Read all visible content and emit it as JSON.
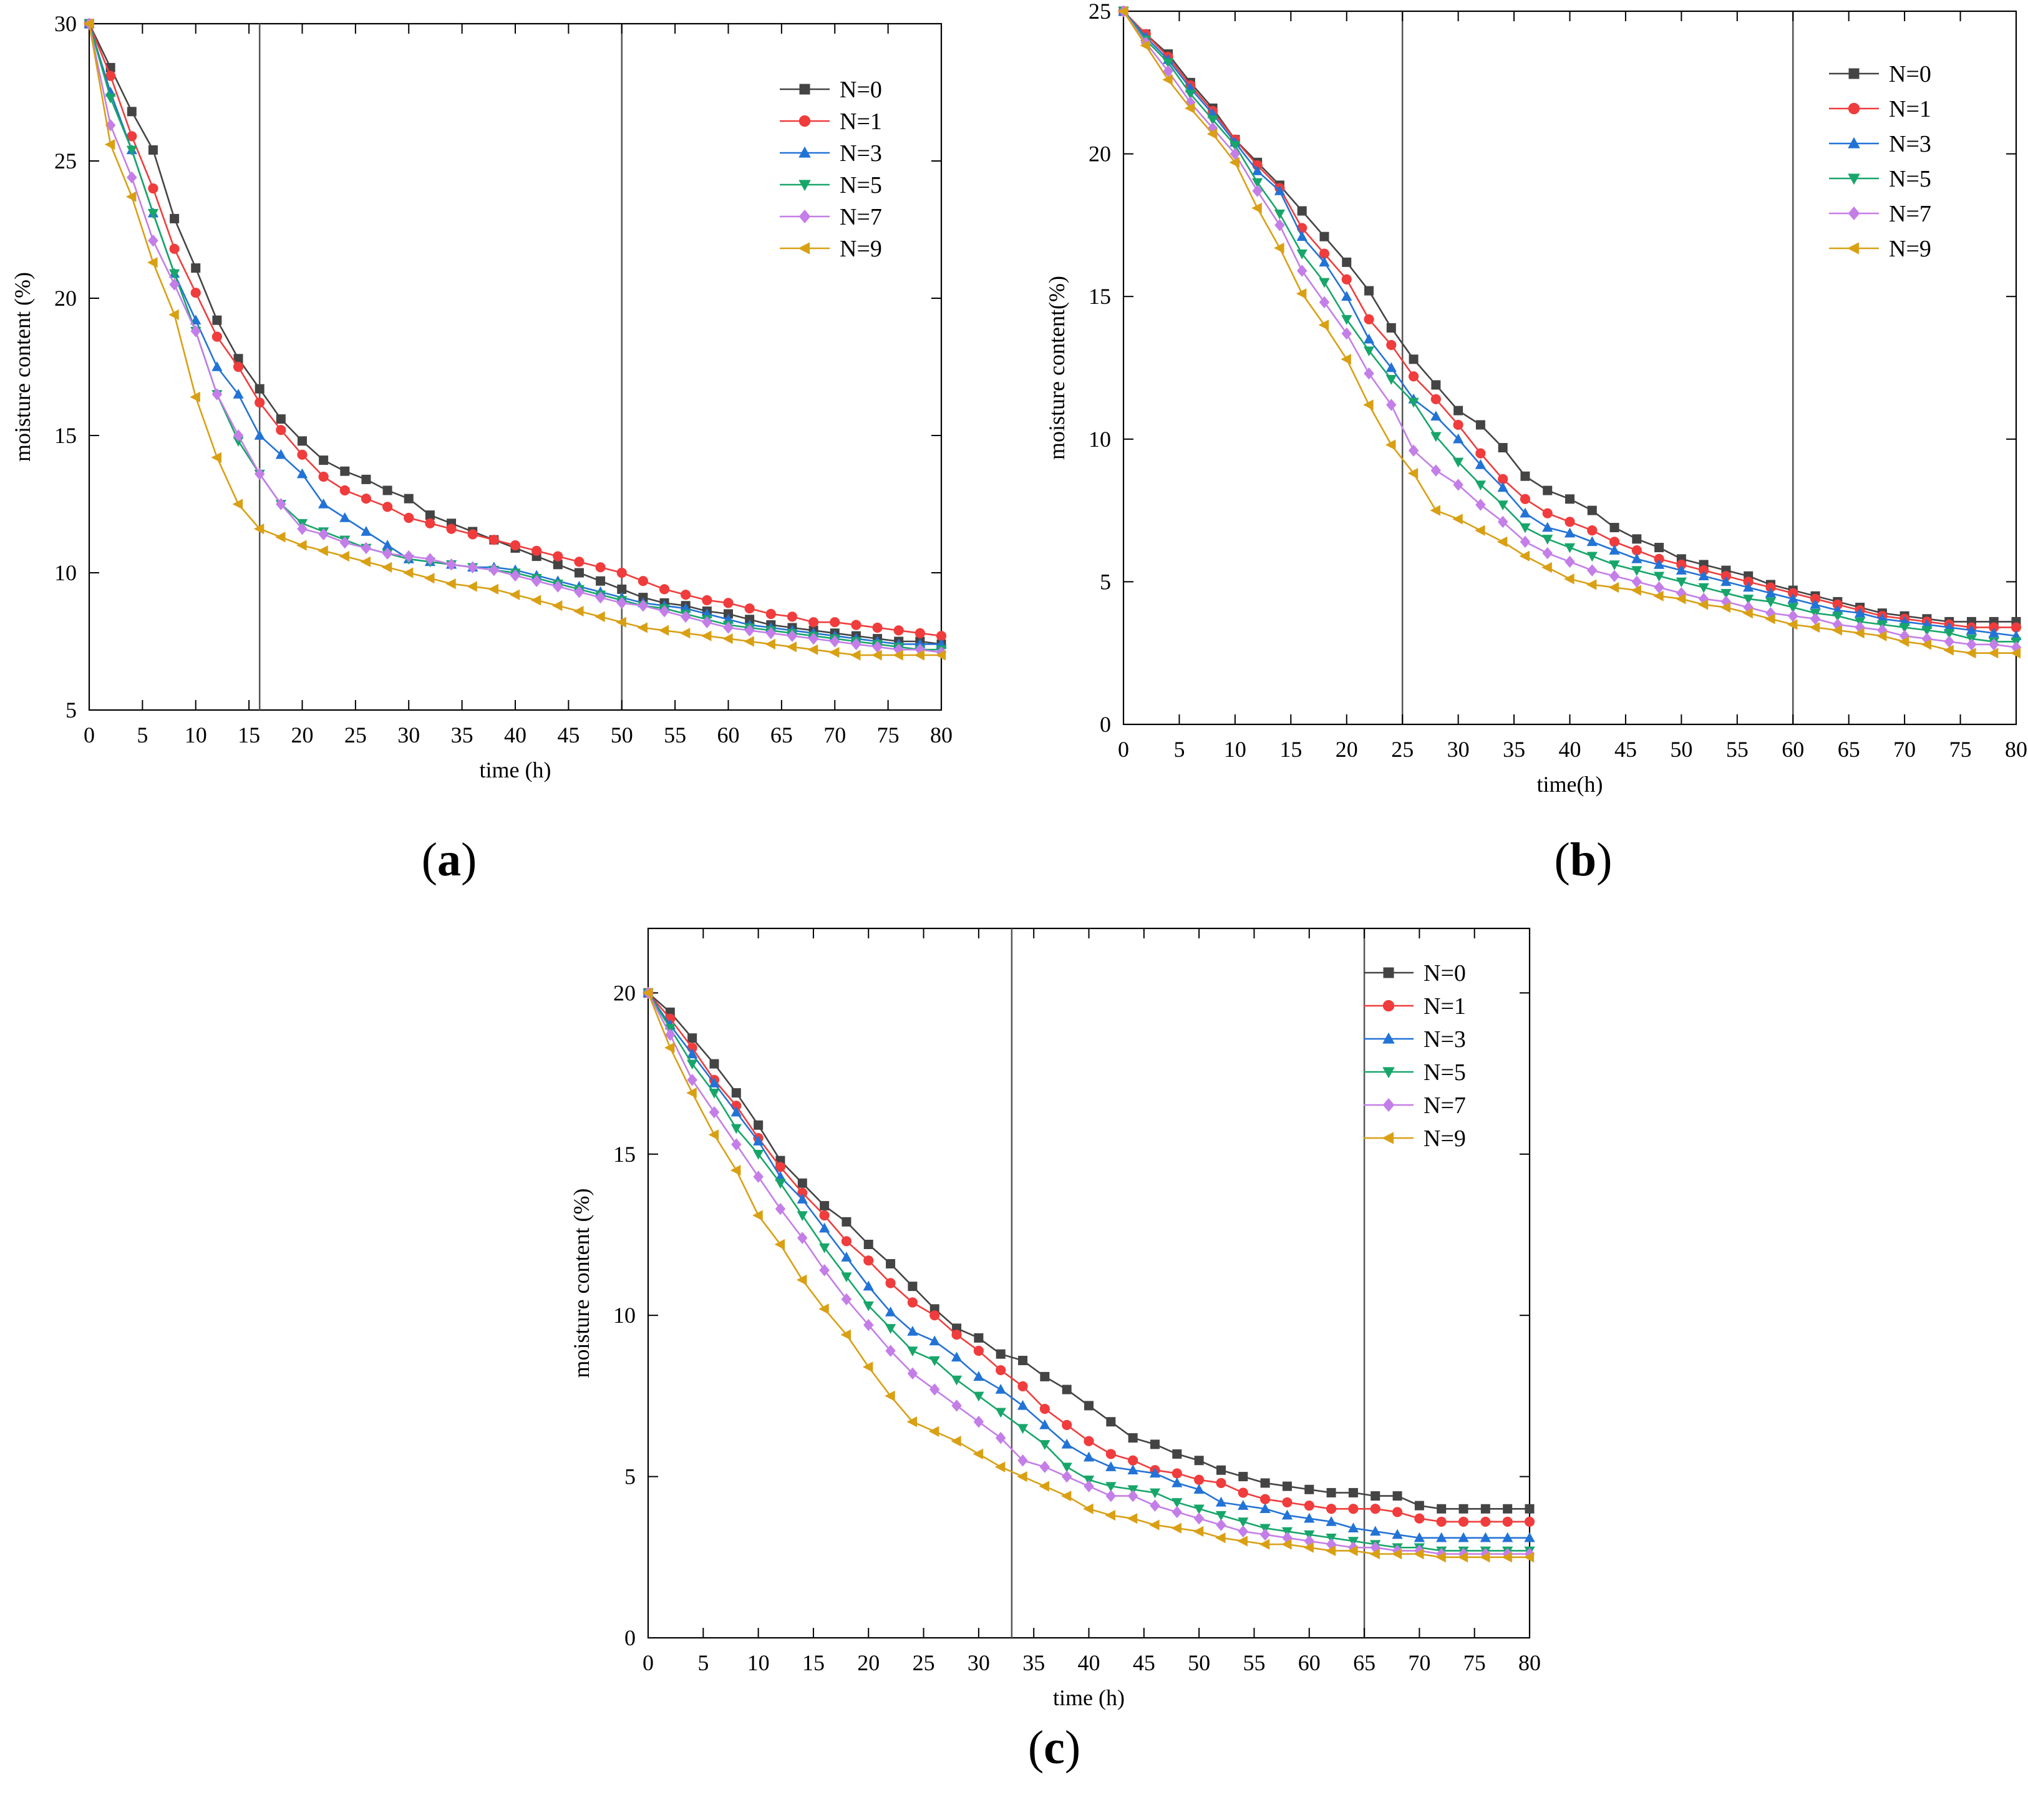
{
  "colors": {
    "N=0": "#444444",
    "N=1": "#f03c3c",
    "N=3": "#2273d6",
    "N=5": "#17a66a",
    "N=7": "#c47ee8",
    "N=9": "#d9a014"
  },
  "chart_data": [
    {
      "id": "a",
      "type": "line",
      "panel_label": "a",
      "xlabel": "time (h)",
      "ylabel": "moisture content (%)",
      "xlim": [
        0,
        80
      ],
      "ylim": [
        5,
        30
      ],
      "xticks": [
        0,
        5,
        10,
        15,
        20,
        25,
        30,
        35,
        40,
        45,
        50,
        55,
        60,
        65,
        70,
        75,
        80
      ],
      "yticks": [
        5,
        10,
        15,
        20,
        25,
        30
      ],
      "vlines": [
        16,
        50
      ],
      "legend_position": "top-right",
      "x": [
        0,
        2,
        4,
        6,
        8,
        10,
        12,
        14,
        16,
        18,
        20,
        22,
        24,
        26,
        28,
        30,
        32,
        34,
        36,
        38,
        40,
        42,
        44,
        46,
        48,
        50,
        52,
        54,
        56,
        58,
        60,
        62,
        64,
        66,
        68,
        70,
        72,
        74,
        76,
        78,
        80
      ],
      "series": [
        {
          "name": "N=0",
          "marker": "square",
          "values": [
            30,
            28.4,
            26.8,
            25.4,
            22.9,
            21.1,
            19.2,
            17.8,
            16.7,
            15.6,
            14.8,
            14.1,
            13.7,
            13.4,
            13.0,
            12.7,
            12.1,
            11.8,
            11.5,
            11.2,
            10.9,
            10.6,
            10.3,
            10.0,
            9.7,
            9.4,
            9.1,
            8.9,
            8.8,
            8.6,
            8.5,
            8.3,
            8.1,
            8.0,
            7.9,
            7.8,
            7.7,
            7.6,
            7.5,
            7.5,
            7.4
          ]
        },
        {
          "name": "N=1",
          "marker": "circle",
          "values": [
            30,
            28.1,
            25.9,
            24.0,
            21.8,
            20.2,
            18.6,
            17.5,
            16.2,
            15.2,
            14.3,
            13.5,
            13.0,
            12.7,
            12.4,
            12.0,
            11.8,
            11.6,
            11.4,
            11.2,
            11.0,
            10.8,
            10.6,
            10.4,
            10.2,
            10.0,
            9.7,
            9.4,
            9.2,
            9.0,
            8.9,
            8.7,
            8.5,
            8.4,
            8.2,
            8.2,
            8.1,
            8.0,
            7.9,
            7.8,
            7.7
          ]
        },
        {
          "name": "N=3",
          "marker": "triangle-up",
          "values": [
            30,
            27.5,
            25.4,
            23.1,
            20.9,
            19.2,
            17.5,
            16.5,
            15.0,
            14.3,
            13.6,
            12.5,
            12.0,
            11.5,
            11.0,
            10.5,
            10.4,
            10.3,
            10.2,
            10.2,
            10.1,
            9.9,
            9.7,
            9.5,
            9.3,
            9.1,
            8.9,
            8.8,
            8.7,
            8.5,
            8.3,
            8.1,
            8.0,
            7.9,
            7.8,
            7.7,
            7.6,
            7.5,
            7.4,
            7.4,
            7.4
          ]
        },
        {
          "name": "N=5",
          "marker": "triangle-down",
          "values": [
            30,
            27.3,
            25.4,
            23.1,
            20.9,
            18.8,
            16.5,
            14.8,
            13.6,
            12.5,
            11.8,
            11.5,
            11.2,
            10.9,
            10.7,
            10.5,
            10.4,
            10.3,
            10.2,
            10.1,
            10.0,
            9.8,
            9.6,
            9.4,
            9.2,
            9.0,
            8.8,
            8.7,
            8.5,
            8.3,
            8.1,
            8.0,
            7.9,
            7.8,
            7.7,
            7.6,
            7.5,
            7.4,
            7.3,
            7.2,
            7.2
          ]
        },
        {
          "name": "N=7",
          "marker": "diamond",
          "values": [
            30,
            26.3,
            24.4,
            22.1,
            20.5,
            18.8,
            16.5,
            15.0,
            13.6,
            12.5,
            11.6,
            11.4,
            11.1,
            10.9,
            10.7,
            10.6,
            10.5,
            10.3,
            10.2,
            10.1,
            9.9,
            9.7,
            9.5,
            9.3,
            9.1,
            8.9,
            8.8,
            8.6,
            8.4,
            8.2,
            8.0,
            7.9,
            7.8,
            7.7,
            7.6,
            7.5,
            7.4,
            7.3,
            7.2,
            7.2,
            7.1
          ]
        },
        {
          "name": "N=9",
          "marker": "triangle-left",
          "values": [
            30,
            25.6,
            23.7,
            21.3,
            19.4,
            16.4,
            14.2,
            12.5,
            11.6,
            11.3,
            11.0,
            10.8,
            10.6,
            10.4,
            10.2,
            10.0,
            9.8,
            9.6,
            9.5,
            9.4,
            9.2,
            9.0,
            8.8,
            8.6,
            8.4,
            8.2,
            8.0,
            7.9,
            7.8,
            7.7,
            7.6,
            7.5,
            7.4,
            7.3,
            7.2,
            7.1,
            7.0,
            7.0,
            7.0,
            7.0,
            7.0
          ]
        }
      ]
    },
    {
      "id": "b",
      "type": "line",
      "panel_label": "b",
      "xlabel": "time(h)",
      "ylabel": "moisture content(%)",
      "xlim": [
        0,
        80
      ],
      "ylim": [
        0,
        25
      ],
      "xticks": [
        0,
        5,
        10,
        15,
        20,
        25,
        30,
        35,
        40,
        45,
        50,
        55,
        60,
        65,
        70,
        75,
        80
      ],
      "yticks": [
        0,
        5,
        10,
        15,
        20,
        25
      ],
      "vlines": [
        25,
        60
      ],
      "legend_position": "top-right",
      "x": [
        0,
        2,
        4,
        6,
        8,
        10,
        12,
        14,
        16,
        18,
        20,
        22,
        24,
        26,
        28,
        30,
        32,
        34,
        36,
        38,
        40,
        42,
        44,
        46,
        48,
        50,
        52,
        54,
        56,
        58,
        60,
        62,
        64,
        66,
        68,
        70,
        72,
        74,
        76,
        78,
        80
      ],
      "series": [
        {
          "name": "N=0",
          "marker": "square",
          "values": [
            25,
            24.2,
            23.5,
            22.5,
            21.6,
            20.5,
            19.7,
            18.9,
            18.0,
            17.1,
            16.2,
            15.2,
            13.9,
            12.8,
            11.9,
            11.0,
            10.5,
            9.7,
            8.7,
            8.2,
            7.9,
            7.5,
            6.9,
            6.5,
            6.2,
            5.8,
            5.6,
            5.4,
            5.2,
            4.9,
            4.7,
            4.5,
            4.3,
            4.1,
            3.9,
            3.8,
            3.7,
            3.6,
            3.6,
            3.6,
            3.6
          ]
        },
        {
          "name": "N=1",
          "marker": "circle",
          "values": [
            25,
            24.2,
            23.4,
            22.4,
            21.5,
            20.5,
            19.6,
            18.8,
            17.4,
            16.5,
            15.6,
            14.2,
            13.3,
            12.2,
            11.4,
            10.5,
            9.5,
            8.6,
            7.9,
            7.4,
            7.1,
            6.8,
            6.4,
            6.1,
            5.8,
            5.6,
            5.4,
            5.2,
            5.0,
            4.8,
            4.6,
            4.4,
            4.2,
            4.0,
            3.8,
            3.7,
            3.6,
            3.5,
            3.4,
            3.4,
            3.4
          ]
        },
        {
          "name": "N=3",
          "marker": "triangle-up",
          "values": [
            25,
            24.1,
            23.3,
            22.3,
            21.4,
            20.4,
            19.4,
            18.7,
            17.1,
            16.2,
            15.0,
            13.5,
            12.5,
            11.4,
            10.8,
            10.0,
            9.1,
            8.3,
            7.4,
            6.9,
            6.7,
            6.4,
            6.1,
            5.8,
            5.6,
            5.4,
            5.2,
            5.0,
            4.8,
            4.6,
            4.4,
            4.2,
            4.0,
            3.9,
            3.7,
            3.6,
            3.5,
            3.4,
            3.3,
            3.2,
            3.1
          ]
        },
        {
          "name": "N=5",
          "marker": "triangle-down",
          "values": [
            25,
            24.0,
            23.2,
            22.1,
            21.2,
            20.3,
            19.0,
            17.9,
            16.5,
            15.5,
            14.2,
            13.1,
            12.1,
            11.3,
            10.1,
            9.2,
            8.4,
            7.7,
            6.9,
            6.5,
            6.2,
            5.9,
            5.6,
            5.4,
            5.2,
            5.0,
            4.8,
            4.6,
            4.4,
            4.3,
            4.1,
            3.9,
            3.8,
            3.6,
            3.5,
            3.4,
            3.3,
            3.2,
            3.0,
            2.9,
            2.9
          ]
        },
        {
          "name": "N=7",
          "marker": "diamond",
          "values": [
            25,
            23.9,
            22.9,
            21.8,
            20.9,
            20.0,
            18.7,
            17.5,
            15.9,
            14.8,
            13.7,
            12.3,
            11.2,
            9.6,
            8.9,
            8.4,
            7.7,
            7.1,
            6.4,
            6.0,
            5.7,
            5.4,
            5.2,
            5.0,
            4.8,
            4.6,
            4.4,
            4.3,
            4.1,
            3.9,
            3.8,
            3.7,
            3.5,
            3.4,
            3.3,
            3.1,
            3.0,
            2.9,
            2.8,
            2.8,
            2.7
          ]
        },
        {
          "name": "N=9",
          "marker": "triangle-left",
          "values": [
            25,
            23.8,
            22.6,
            21.6,
            20.7,
            19.7,
            18.1,
            16.7,
            15.1,
            14.0,
            12.8,
            11.2,
            9.8,
            8.8,
            7.5,
            7.2,
            6.8,
            6.4,
            5.9,
            5.5,
            5.1,
            4.9,
            4.8,
            4.7,
            4.5,
            4.4,
            4.2,
            4.1,
            3.9,
            3.7,
            3.5,
            3.4,
            3.3,
            3.2,
            3.1,
            2.9,
            2.8,
            2.6,
            2.5,
            2.5,
            2.5
          ]
        }
      ]
    },
    {
      "id": "c",
      "type": "line",
      "panel_label": "c",
      "xlabel": "time (h)",
      "ylabel": "moisture content (%)",
      "xlim": [
        0,
        80
      ],
      "ylim": [
        0,
        22
      ],
      "xticks": [
        0,
        5,
        10,
        15,
        20,
        25,
        30,
        35,
        40,
        45,
        50,
        55,
        60,
        65,
        70,
        75,
        80
      ],
      "yticks": [
        0,
        5,
        10,
        15,
        20
      ],
      "vlines": [
        33,
        65
      ],
      "legend_position": "top-right",
      "x": [
        0,
        2,
        4,
        6,
        8,
        10,
        12,
        14,
        16,
        18,
        20,
        22,
        24,
        26,
        28,
        30,
        32,
        34,
        36,
        38,
        40,
        42,
        44,
        46,
        48,
        50,
        52,
        54,
        56,
        58,
        60,
        62,
        64,
        66,
        68,
        70,
        72,
        74,
        76,
        78,
        80
      ],
      "series": [
        {
          "name": "N=0",
          "marker": "square",
          "values": [
            20,
            19.4,
            18.6,
            17.8,
            16.9,
            15.9,
            14.8,
            14.1,
            13.4,
            12.9,
            12.2,
            11.6,
            10.9,
            10.2,
            9.6,
            9.3,
            8.8,
            8.6,
            8.1,
            7.7,
            7.2,
            6.7,
            6.2,
            6.0,
            5.7,
            5.5,
            5.2,
            5.0,
            4.8,
            4.7,
            4.6,
            4.5,
            4.5,
            4.4,
            4.4,
            4.1,
            4.0,
            4.0,
            4.0,
            4.0,
            4.0
          ]
        },
        {
          "name": "N=1",
          "marker": "circle",
          "values": [
            20,
            19.2,
            18.3,
            17.3,
            16.5,
            15.5,
            14.6,
            13.8,
            13.1,
            12.3,
            11.7,
            11.0,
            10.4,
            10.0,
            9.4,
            8.9,
            8.3,
            7.8,
            7.1,
            6.6,
            6.1,
            5.7,
            5.5,
            5.2,
            5.1,
            4.9,
            4.8,
            4.5,
            4.3,
            4.2,
            4.1,
            4.0,
            4.0,
            4.0,
            3.9,
            3.7,
            3.6,
            3.6,
            3.6,
            3.6,
            3.6
          ]
        },
        {
          "name": "N=3",
          "marker": "triangle-up",
          "values": [
            20,
            19.0,
            18.1,
            17.2,
            16.3,
            15.4,
            14.3,
            13.6,
            12.7,
            11.8,
            10.9,
            10.1,
            9.5,
            9.2,
            8.7,
            8.1,
            7.7,
            7.2,
            6.6,
            6.0,
            5.6,
            5.3,
            5.2,
            5.1,
            4.8,
            4.6,
            4.2,
            4.1,
            4.0,
            3.8,
            3.7,
            3.6,
            3.4,
            3.3,
            3.2,
            3.1,
            3.1,
            3.1,
            3.1,
            3.1,
            3.1
          ]
        },
        {
          "name": "N=5",
          "marker": "triangle-down",
          "values": [
            20,
            18.9,
            17.8,
            16.9,
            15.8,
            15.0,
            14.1,
            13.1,
            12.1,
            11.2,
            10.3,
            9.6,
            8.9,
            8.6,
            8.0,
            7.5,
            7.0,
            6.5,
            6.0,
            5.3,
            4.9,
            4.7,
            4.6,
            4.5,
            4.2,
            4.0,
            3.8,
            3.6,
            3.4,
            3.3,
            3.2,
            3.1,
            3.0,
            2.9,
            2.8,
            2.8,
            2.7,
            2.7,
            2.7,
            2.7,
            2.7
          ]
        },
        {
          "name": "N=7",
          "marker": "diamond",
          "values": [
            20,
            18.7,
            17.3,
            16.3,
            15.3,
            14.3,
            13.3,
            12.4,
            11.4,
            10.5,
            9.7,
            8.9,
            8.2,
            7.7,
            7.2,
            6.7,
            6.2,
            5.5,
            5.3,
            5.0,
            4.7,
            4.4,
            4.4,
            4.1,
            3.9,
            3.7,
            3.5,
            3.3,
            3.2,
            3.1,
            3.0,
            2.9,
            2.8,
            2.8,
            2.7,
            2.7,
            2.6,
            2.6,
            2.6,
            2.6,
            2.6
          ]
        },
        {
          "name": "N=9",
          "marker": "triangle-left",
          "values": [
            20,
            18.3,
            16.9,
            15.6,
            14.5,
            13.1,
            12.2,
            11.1,
            10.2,
            9.4,
            8.4,
            7.5,
            6.7,
            6.4,
            6.1,
            5.7,
            5.3,
            5.0,
            4.7,
            4.4,
            4.0,
            3.8,
            3.7,
            3.5,
            3.4,
            3.3,
            3.1,
            3.0,
            2.9,
            2.9,
            2.8,
            2.7,
            2.7,
            2.6,
            2.6,
            2.6,
            2.5,
            2.5,
            2.5,
            2.5,
            2.5
          ]
        }
      ]
    }
  ]
}
